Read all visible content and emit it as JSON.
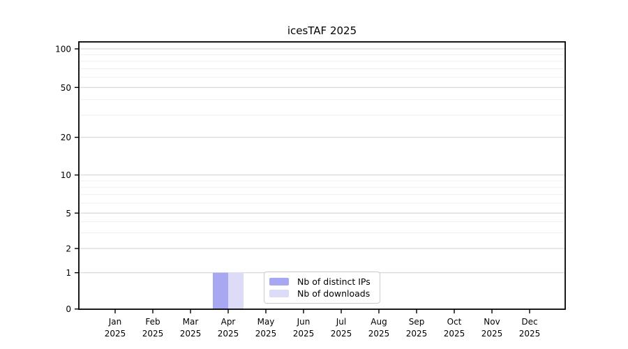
{
  "figure": {
    "title": "icesTAF 2025"
  },
  "chart_data": {
    "type": "bar",
    "title": "icesTAF 2025",
    "categories": [
      "Jan 2025",
      "Feb 2025",
      "Mar 2025",
      "Apr 2025",
      "May 2025",
      "Jun 2025",
      "Jul 2025",
      "Aug 2025",
      "Sep 2025",
      "Oct 2025",
      "Nov 2025",
      "Dec 2025"
    ],
    "series": [
      {
        "name": "Nb of distinct IPs",
        "key": "distinct-ips",
        "color": "#a8a8f2",
        "values": [
          0,
          0,
          0,
          1,
          0,
          0,
          0,
          0,
          0,
          0,
          0,
          0
        ]
      },
      {
        "name": "Nb of downloads",
        "key": "downloads",
        "color": "#dcdcf9",
        "values": [
          0,
          0,
          0,
          1,
          0,
          0,
          0,
          0,
          0,
          0,
          0,
          0
        ]
      }
    ],
    "xlabel": "",
    "ylabel": "",
    "yscale": "log-like (0,1,2,5,10,20,50,100)",
    "yticks": [
      0,
      1,
      2,
      5,
      10,
      20,
      50,
      100
    ],
    "yticks_minor": [
      3,
      4,
      6,
      7,
      8,
      9,
      30,
      40,
      60,
      70,
      80,
      90
    ],
    "ylim": [
      0,
      113
    ],
    "grid": "on",
    "legend_position": "lower center",
    "colors": {
      "grid_major": "#cfcfcf",
      "grid_minor": "#efefef",
      "axis": "#000000"
    }
  }
}
